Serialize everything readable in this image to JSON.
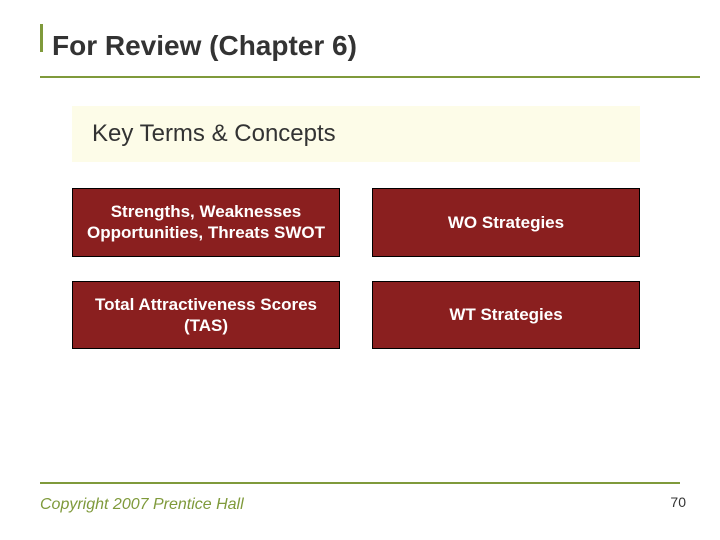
{
  "colors": {
    "accent": "#7f9a3b",
    "card_bg": "#8a1f1f",
    "card_text": "#ffffff",
    "subtitle_bg": "#fdfce8",
    "footer_text": "#7f9a3b",
    "title_text": "#333333",
    "underline": "#7f9a3b"
  },
  "title": "For Review (Chapter 6)",
  "subtitle": "Key Terms & Concepts",
  "cards": [
    {
      "text": "Strengths, Weaknesses Opportunities, Threats SWOT"
    },
    {
      "text": "WO Strategies"
    },
    {
      "text": "Total Attractiveness Scores (TAS)"
    },
    {
      "text": "WT Strategies"
    }
  ],
  "footer": "Copyright 2007 Prentice Hall",
  "page_number": "70"
}
